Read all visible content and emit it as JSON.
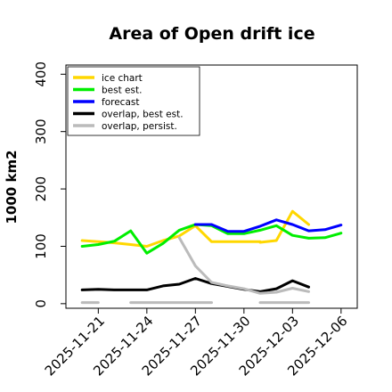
{
  "chart_data": {
    "type": "line",
    "title": "Area of Open drift ice",
    "ylabel": "1000 km2",
    "xlabel": "",
    "ylim": [
      -8,
      416
    ],
    "xlim": [
      "2025-11-19",
      "2025-12-07"
    ],
    "yticks": [
      "0",
      "100",
      "200",
      "300",
      "400"
    ],
    "xticks": [
      "2025-11-21",
      "2025-11-24",
      "2025-11-27",
      "2025-11-30",
      "2025-12-03",
      "2025-12-06"
    ],
    "highlight_tick": "2025-11-27",
    "highlight_color": "#228b22",
    "grid": false,
    "legend_position": "top-left",
    "series": [
      {
        "name": "ice chart",
        "color": "#ffd700",
        "segments": [
          {
            "x": [
              "2025-11-20",
              "2025-11-21",
              "2025-11-22",
              "2025-11-23",
              "2025-11-24",
              "2025-11-25",
              "2025-11-26",
              "2025-11-27",
              "2025-11-28",
              "2025-11-29",
              "2025-11-30",
              "2025-12-01"
            ],
            "y": [
              110,
              108,
              106,
              103,
              100,
              110,
              118,
              136,
              108,
              108,
              108,
              108
            ]
          },
          {
            "x": [
              "2025-12-01",
              "2025-12-02",
              "2025-12-03",
              "2025-12-04"
            ],
            "y": [
              107,
              110,
              161,
              138
            ]
          }
        ]
      },
      {
        "name": "best est.",
        "color": "#00ee00",
        "segments": [
          {
            "x": [
              "2025-11-20",
              "2025-11-21",
              "2025-11-22",
              "2025-11-23",
              "2025-11-24",
              "2025-11-25",
              "2025-11-26",
              "2025-11-27",
              "2025-11-28",
              "2025-11-29",
              "2025-11-30",
              "2025-12-01",
              "2025-12-02",
              "2025-12-03",
              "2025-12-04",
              "2025-12-05",
              "2025-12-06"
            ],
            "y": [
              100,
              103,
              109,
              127,
              88,
              105,
              128,
              138,
              136,
              122,
              122,
              128,
              136,
              119,
              114,
              115,
              123
            ]
          }
        ]
      },
      {
        "name": "forecast",
        "color": "#0000ff",
        "segments": [
          {
            "x": [
              "2025-11-27",
              "2025-11-28",
              "2025-11-29",
              "2025-11-30",
              "2025-12-01",
              "2025-12-02",
              "2025-12-03",
              "2025-12-04",
              "2025-12-05",
              "2025-12-06"
            ],
            "y": [
              138,
              138,
              126,
              126,
              135,
              146,
              138,
              127,
              129,
              137
            ]
          }
        ]
      },
      {
        "name": "overlap, best est.",
        "color": "#000000",
        "segments": [
          {
            "x": [
              "2025-11-20",
              "2025-11-21",
              "2025-11-22",
              "2025-11-23",
              "2025-11-24",
              "2025-11-25",
              "2025-11-26",
              "2025-11-27",
              "2025-11-28",
              "2025-11-29",
              "2025-11-30",
              "2025-12-01",
              "2025-12-02",
              "2025-12-03",
              "2025-12-04"
            ],
            "y": [
              24,
              25,
              24,
              24,
              24,
              31,
              34,
              44,
              35,
              30,
              25,
              21,
              26,
              40,
              29
            ]
          }
        ]
      },
      {
        "name": "overlap, persist.",
        "color": "#bbbbbb",
        "segments": [
          {
            "x": [
              "2025-11-20",
              "2025-11-21"
            ],
            "y": [
              2,
              2
            ]
          },
          {
            "x": [
              "2025-11-23",
              "2025-11-24",
              "2025-11-25",
              "2025-11-26",
              "2025-11-27",
              "2025-11-28"
            ],
            "y": [
              2,
              2,
              2,
              2,
              2,
              2
            ]
          },
          {
            "x": [
              "2025-11-26",
              "2025-11-27",
              "2025-11-28",
              "2025-11-29",
              "2025-11-30",
              "2025-12-01",
              "2025-12-02",
              "2025-12-03",
              "2025-12-04"
            ],
            "y": [
              115,
              66,
              37,
              31,
              26,
              18,
              20,
              27,
              21
            ]
          },
          {
            "x": [
              "2025-12-01",
              "2025-12-02",
              "2025-12-03",
              "2025-12-04"
            ],
            "y": [
              2,
              2,
              2,
              2
            ]
          }
        ]
      }
    ]
  }
}
